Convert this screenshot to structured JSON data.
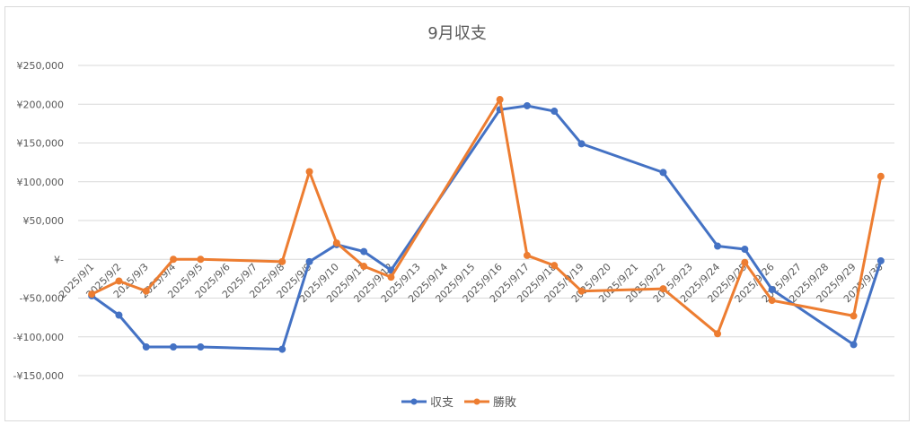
{
  "chart_data": {
    "type": "line",
    "title": "9月収支",
    "xlabel": "",
    "ylabel": "",
    "ylim": [
      -150000,
      250000
    ],
    "yticks": [
      250000,
      200000,
      150000,
      100000,
      50000,
      0,
      -50000,
      -100000,
      -150000
    ],
    "ytick_labels": [
      "¥250,000",
      "¥200,000",
      "¥150,000",
      "¥100,000",
      "¥50,000",
      "¥-",
      "-¥50,000",
      "-¥100,000",
      "-¥150,000"
    ],
    "grid": true,
    "legend_position": "bottom",
    "categories": [
      "2025/9/1",
      "2025/9/2",
      "2025/9/3",
      "2025/9/4",
      "2025/9/5",
      "2025/9/6",
      "2025/9/7",
      "2025/9/8",
      "2025/9/9",
      "2025/9/10",
      "2025/9/11",
      "2025/9/12",
      "2025/9/13",
      "2025/9/14",
      "2025/9/15",
      "2025/9/16",
      "2025/9/17",
      "2025/9/18",
      "2025/9/19",
      "2025/9/20",
      "2025/9/21",
      "2025/9/22",
      "2025/9/23",
      "2025/9/24",
      "2025/9/25",
      "2025/9/26",
      "2025/9/27",
      "2025/9/28",
      "2025/9/29",
      "2025/9/30"
    ],
    "series": [
      {
        "name": "収支",
        "color": "#4472c4",
        "values": [
          -47000,
          -72000,
          -113000,
          -113000,
          -113000,
          null,
          null,
          -116000,
          -3000,
          19000,
          10000,
          -14000,
          null,
          null,
          null,
          193000,
          198000,
          191000,
          149000,
          null,
          null,
          112000,
          null,
          17000,
          13000,
          -39000,
          null,
          null,
          -110000,
          -2000
        ]
      },
      {
        "name": "勝敗",
        "color": "#ed7d31",
        "values": [
          -45000,
          -28000,
          -41000,
          0,
          0,
          null,
          null,
          -3000,
          113000,
          21000,
          -9000,
          -23000,
          null,
          null,
          null,
          206000,
          5000,
          -8000,
          -41000,
          null,
          null,
          -38000,
          null,
          -96000,
          -4000,
          -53000,
          null,
          null,
          -73000,
          107000
        ]
      }
    ]
  }
}
